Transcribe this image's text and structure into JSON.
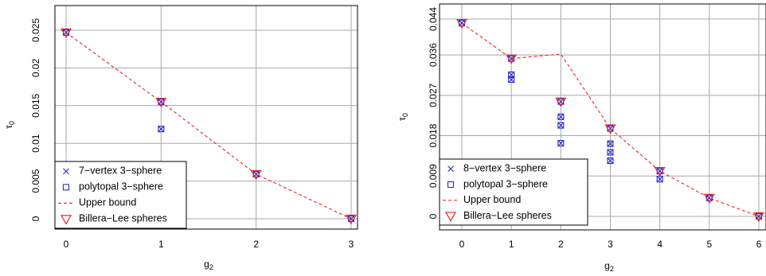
{
  "colors": {
    "cross": "#2a2acc",
    "square": "#2a2acc",
    "bound": "#e8262b",
    "billera": "#e8262b",
    "grid": "#a8a8a8"
  },
  "chart_data": [
    {
      "type": "scatter",
      "xlabel": "g",
      "xlabel_sub": "2",
      "ylabel": "τ",
      "ylabel_sub": "0",
      "xlim": [
        0,
        3
      ],
      "ylim": [
        0,
        0.025
      ],
      "x_ticks": [
        0,
        1,
        2,
        3
      ],
      "x_tick_labels": [
        "0",
        "1",
        "2",
        "3"
      ],
      "y_ticks": [
        0,
        0.005,
        0.01,
        0.015,
        0.02,
        0.025
      ],
      "y_tick_labels": [
        "0",
        "0.005",
        "0.01",
        "0.015",
        "0.02",
        "0.025"
      ],
      "grid": true,
      "legend": {
        "position": "bottom-left",
        "entries": [
          {
            "label": "7−vertex 3−sphere",
            "marker": "cross"
          },
          {
            "label": "polytopal 3−sphere",
            "marker": "square"
          },
          {
            "label": "Upper bound",
            "marker": "dashed-line"
          },
          {
            "label": "Billera−Lee spheres",
            "marker": "triangle-down"
          }
        ]
      },
      "series": [
        {
          "name": "7−vertex 3−sphere",
          "marker": "cross",
          "points": [
            [
              0,
              0.0247
            ],
            [
              1,
              0.0155
            ],
            [
              1,
              0.0119
            ],
            [
              2,
              0.0059
            ],
            [
              3,
              0.0
            ]
          ]
        },
        {
          "name": "polytopal 3−sphere",
          "marker": "square",
          "points": [
            [
              0,
              0.0247
            ],
            [
              1,
              0.0155
            ],
            [
              1,
              0.0119
            ],
            [
              2,
              0.0059
            ],
            [
              3,
              0.0
            ]
          ]
        },
        {
          "name": "Upper bound",
          "marker": "dashed-line",
          "points": [
            [
              0,
              0.0247
            ],
            [
              1,
              0.0155
            ],
            [
              2,
              0.0059
            ],
            [
              3,
              0.0
            ]
          ]
        },
        {
          "name": "Billera−Lee spheres",
          "marker": "triangle-down",
          "points": [
            [
              0,
              0.0247
            ],
            [
              1,
              0.0155
            ],
            [
              2,
              0.0059
            ],
            [
              3,
              0.0
            ]
          ]
        }
      ]
    },
    {
      "type": "scatter",
      "xlabel": "g",
      "xlabel_sub": "2",
      "ylabel": "τ",
      "ylabel_sub": "0",
      "xlim": [
        0,
        6
      ],
      "ylim": [
        0,
        0.044
      ],
      "x_ticks": [
        0,
        1,
        2,
        3,
        4,
        5,
        6
      ],
      "x_tick_labels": [
        "0",
        "1",
        "2",
        "3",
        "4",
        "5",
        "6"
      ],
      "y_ticks": [
        0,
        0.009,
        0.018,
        0.027,
        0.036,
        0.044
      ],
      "y_tick_labels": [
        "0",
        "0.009",
        "0.018",
        "0.027",
        "0.036",
        "0.044"
      ],
      "grid": true,
      "legend": {
        "position": "bottom-left",
        "entries": [
          {
            "label": "8−vertex 3−sphere",
            "marker": "cross"
          },
          {
            "label": "polytopal 3−sphere",
            "marker": "square"
          },
          {
            "label": "Upper bound",
            "marker": "dashed-line"
          },
          {
            "label": "Billera−Lee spheres",
            "marker": "triangle-down"
          }
        ]
      },
      "series": [
        {
          "name": "8−vertex 3−sphere",
          "marker": "cross",
          "points": [
            [
              0,
              0.0431
            ],
            [
              1,
              0.0352
            ],
            [
              1,
              0.0316
            ],
            [
              1,
              0.0305
            ],
            [
              2,
              0.0256
            ],
            [
              2,
              0.0222
            ],
            [
              2,
              0.0203
            ],
            [
              2,
              0.0163
            ],
            [
              3,
              0.0196
            ],
            [
              3,
              0.0162
            ],
            [
              3,
              0.0143
            ],
            [
              3,
              0.0124
            ],
            [
              4,
              0.0101
            ],
            [
              4,
              0.0083
            ],
            [
              5,
              0.0041
            ],
            [
              6,
              0.0
            ]
          ]
        },
        {
          "name": "polytopal 3−sphere",
          "marker": "square",
          "points": [
            [
              0,
              0.0431
            ],
            [
              1,
              0.0352
            ],
            [
              1,
              0.0316
            ],
            [
              1,
              0.0305
            ],
            [
              2,
              0.0256
            ],
            [
              2,
              0.0222
            ],
            [
              2,
              0.0203
            ],
            [
              2,
              0.0163
            ],
            [
              3,
              0.0196
            ],
            [
              3,
              0.0162
            ],
            [
              3,
              0.0143
            ],
            [
              3,
              0.0124
            ],
            [
              4,
              0.0101
            ],
            [
              4,
              0.0083
            ],
            [
              5,
              0.0041
            ],
            [
              6,
              0.0
            ]
          ]
        },
        {
          "name": "Upper bound",
          "marker": "dashed-line",
          "points": [
            [
              0,
              0.0431
            ],
            [
              1,
              0.0352
            ],
            [
              2,
              0.0362
            ],
            [
              3,
              0.0196
            ],
            [
              4,
              0.0101
            ],
            [
              5,
              0.0041
            ],
            [
              6,
              0.0
            ]
          ]
        },
        {
          "name": "Billera−Lee spheres",
          "marker": "triangle-down",
          "points": [
            [
              0,
              0.0431
            ],
            [
              1,
              0.0352
            ],
            [
              2,
              0.0256
            ],
            [
              3,
              0.0196
            ],
            [
              4,
              0.0101
            ],
            [
              5,
              0.0041
            ],
            [
              6,
              0.0
            ]
          ]
        }
      ]
    }
  ]
}
